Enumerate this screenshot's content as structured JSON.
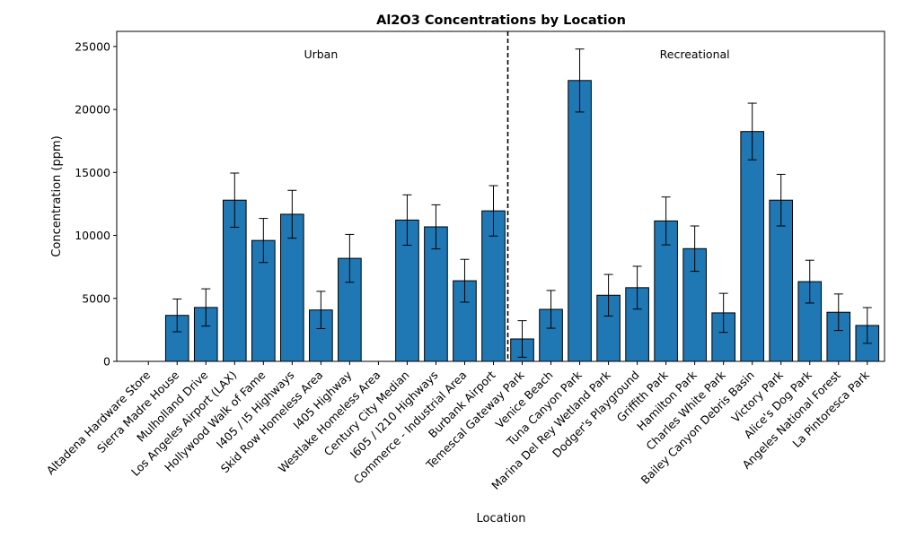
{
  "chart_data": {
    "type": "bar",
    "title": "Al2O3 Concentrations by Location",
    "xlabel": "Location",
    "ylabel": "Concentration (ppm)",
    "ylim": [
      0,
      26200
    ],
    "yticks": [
      0,
      5000,
      10000,
      15000,
      20000,
      25000
    ],
    "grid": false,
    "error_bars": true,
    "divider_after_index": 12,
    "groups": [
      {
        "label": "Urban",
        "range": [
          0,
          12
        ]
      },
      {
        "label": "Recreational",
        "range": [
          13,
          25
        ]
      }
    ],
    "categories": [
      "Altadena Hardware Store",
      "Sierra Madre House",
      "Mulholland Drive",
      "Los Angeles Airport (LAX)",
      "Hollywood Walk of Fame",
      "I405 / I5 Highways",
      "Skid Row Homeless Area",
      "I405 Highway",
      "Westlake Homeless Area",
      "Century City Median",
      "I605 / I210 Highways",
      "Commerce - Industrial Area",
      "Burbank Airport",
      "Temescal Gateway Park",
      "Venice Beach",
      "Tuna Canyon Park",
      "Marina Del Rey Wetland Park",
      "Dodger's Playground",
      "Griffith Park",
      "Hamilton Park",
      "Charles White Park",
      "Bailey Canyon Debris Basin",
      "Victory Park",
      "Alice's Dog Park",
      "Angeles National Forest",
      "La Pintoresca Park"
    ],
    "values": [
      0,
      3650,
      4280,
      12800,
      9600,
      11680,
      4080,
      8180,
      0,
      11220,
      10680,
      6400,
      11950,
      1780,
      4130,
      22300,
      5250,
      5850,
      11150,
      8950,
      3850,
      18250,
      12800,
      6330,
      3900,
      2850
    ],
    "errors": [
      0,
      1300,
      1480,
      2150,
      1750,
      1900,
      1480,
      1900,
      0,
      2000,
      1750,
      1700,
      2000,
      1450,
      1500,
      2500,
      1650,
      1700,
      1900,
      1800,
      1550,
      2250,
      2050,
      1700,
      1450,
      1420
    ],
    "colors": {
      "bar": "#1f77b4",
      "edge": "#000000"
    }
  }
}
